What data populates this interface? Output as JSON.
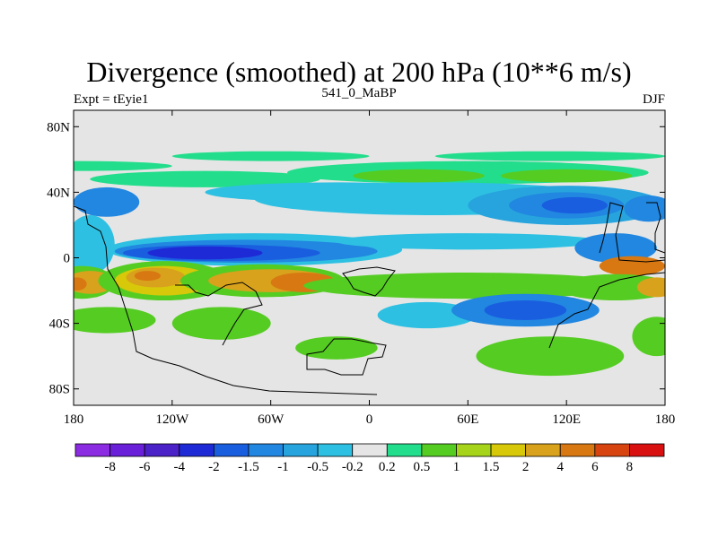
{
  "title": "Divergence (smoothed) at 200 hPa (10**6 m/s)",
  "left_subtitle": "Expt = tEyie1",
  "center_subtitle": "541_0_MaBP",
  "right_subtitle": "DJF",
  "chart_data": {
    "type": "heatmap",
    "title": "Divergence (smoothed) at 200 hPa (10**6 m/s)",
    "xlim": [
      -180,
      180
    ],
    "ylim": [
      -90,
      90
    ],
    "x_ticks": [
      {
        "value": -180,
        "label": "180"
      },
      {
        "value": -120,
        "label": "120W"
      },
      {
        "value": -60,
        "label": "60W"
      },
      {
        "value": 0,
        "label": "0"
      },
      {
        "value": 60,
        "label": "60E"
      },
      {
        "value": 120,
        "label": "120E"
      },
      {
        "value": 180,
        "label": "180"
      }
    ],
    "y_ticks": [
      {
        "value": 80,
        "label": "80N"
      },
      {
        "value": 40,
        "label": "40N"
      },
      {
        "value": 0,
        "label": "0"
      },
      {
        "value": -40,
        "label": "40S"
      },
      {
        "value": -80,
        "label": "80S"
      }
    ],
    "colorbar": {
      "colors": [
        "#8b2be2",
        "#6a1fd8",
        "#4b22c7",
        "#1e2ad6",
        "#1a5ee0",
        "#2187e0",
        "#27a4dd",
        "#2ec0e2",
        "#e5e5e5",
        "#22dd8b",
        "#55cc22",
        "#a6d41a",
        "#d7c80a",
        "#d8a21c",
        "#d87812",
        "#d84410",
        "#d81010"
      ],
      "labels": [
        "-8",
        "-6",
        "-4",
        "-2",
        "-1.5",
        "-1",
        "-0.5",
        "-0.2",
        "0.2",
        "0.5",
        "1",
        "1.5",
        "2",
        "4",
        "6",
        "8"
      ]
    },
    "background_level": "#e5e5e5",
    "features": [
      {
        "lon": -175,
        "lat": 56,
        "dlon": 55,
        "dlat": 3,
        "color": "#22dd8b"
      },
      {
        "lon": -60,
        "lat": 62,
        "dlon": 60,
        "dlat": 3,
        "color": "#22dd8b"
      },
      {
        "lon": 110,
        "lat": 62,
        "dlon": 70,
        "dlat": 3,
        "color": "#22dd8b"
      },
      {
        "lon": -100,
        "lat": 48,
        "dlon": 70,
        "dlat": 5,
        "color": "#22dd8b"
      },
      {
        "lon": 60,
        "lat": 52,
        "dlon": 110,
        "dlat": 7,
        "color": "#22dd8b"
      },
      {
        "lon": 30,
        "lat": 50,
        "dlon": 40,
        "dlat": 4,
        "color": "#55cc22"
      },
      {
        "lon": 120,
        "lat": 50,
        "dlon": 40,
        "dlat": 4,
        "color": "#55cc22"
      },
      {
        "lon": -160,
        "lat": 34,
        "dlon": 20,
        "dlat": 9,
        "color": "#2187e0"
      },
      {
        "lon": -20,
        "lat": 40,
        "dlon": 80,
        "dlat": 6,
        "color": "#2ec0e2"
      },
      {
        "lon": 40,
        "lat": 36,
        "dlon": 110,
        "dlat": 10,
        "color": "#2ec0e2"
      },
      {
        "lon": 120,
        "lat": 32,
        "dlon": 60,
        "dlat": 12,
        "color": "#27a4dd"
      },
      {
        "lon": 120,
        "lat": 32,
        "dlon": 35,
        "dlat": 8,
        "color": "#2187e0"
      },
      {
        "lon": 125,
        "lat": 32,
        "dlon": 20,
        "dlat": 5,
        "color": "#1a5ee0"
      },
      {
        "lon": 170,
        "lat": 30,
        "dlon": 15,
        "dlat": 8,
        "color": "#2187e0"
      },
      {
        "lon": -170,
        "lat": 8,
        "dlon": 15,
        "dlat": 18,
        "color": "#2ec0e2"
      },
      {
        "lon": -70,
        "lat": 5,
        "dlon": 90,
        "dlat": 10,
        "color": "#2ec0e2"
      },
      {
        "lon": -75,
        "lat": 4,
        "dlon": 80,
        "dlat": 7,
        "color": "#2187e0"
      },
      {
        "lon": -90,
        "lat": 3,
        "dlon": 60,
        "dlat": 5,
        "color": "#1a5ee0"
      },
      {
        "lon": -100,
        "lat": 3,
        "dlon": 35,
        "dlat": 4,
        "color": "#1e2ad6"
      },
      {
        "lon": 60,
        "lat": 10,
        "dlon": 80,
        "dlat": 5,
        "color": "#2ec0e2"
      },
      {
        "lon": 150,
        "lat": 6,
        "dlon": 25,
        "dlat": 9,
        "color": "#2187e0"
      },
      {
        "lon": 160,
        "lat": -5,
        "dlon": 20,
        "dlat": 6,
        "color": "#d87812"
      },
      {
        "lon": -175,
        "lat": -15,
        "dlon": 20,
        "dlat": 10,
        "color": "#55cc22"
      },
      {
        "lon": -170,
        "lat": -15,
        "dlon": 15,
        "dlat": 7,
        "color": "#d8a21c"
      },
      {
        "lon": -178,
        "lat": -16,
        "dlon": 6,
        "dlat": 4,
        "color": "#d87812"
      },
      {
        "lon": -125,
        "lat": -14,
        "dlon": 40,
        "dlat": 12,
        "color": "#55cc22"
      },
      {
        "lon": -125,
        "lat": -14,
        "dlon": 30,
        "dlat": 9,
        "color": "#d7c80a"
      },
      {
        "lon": -130,
        "lat": -12,
        "dlon": 18,
        "dlat": 6,
        "color": "#d8a21c"
      },
      {
        "lon": -135,
        "lat": -11,
        "dlon": 8,
        "dlat": 3,
        "color": "#d87812"
      },
      {
        "lon": -65,
        "lat": -14,
        "dlon": 50,
        "dlat": 10,
        "color": "#55cc22"
      },
      {
        "lon": -60,
        "lat": -14,
        "dlon": 38,
        "dlat": 7,
        "color": "#d8a21c"
      },
      {
        "lon": -40,
        "lat": -15,
        "dlon": 20,
        "dlat": 6,
        "color": "#d87812"
      },
      {
        "lon": 60,
        "lat": -17,
        "dlon": 100,
        "dlat": 8,
        "color": "#55cc22"
      },
      {
        "lon": 150,
        "lat": -18,
        "dlon": 35,
        "dlat": 8,
        "color": "#55cc22"
      },
      {
        "lon": 175,
        "lat": -18,
        "dlon": 12,
        "dlat": 6,
        "color": "#d8a21c"
      },
      {
        "lon": -160,
        "lat": -38,
        "dlon": 30,
        "dlat": 8,
        "color": "#55cc22"
      },
      {
        "lon": -90,
        "lat": -40,
        "dlon": 30,
        "dlat": 10,
        "color": "#55cc22"
      },
      {
        "lon": 35,
        "lat": -35,
        "dlon": 30,
        "dlat": 8,
        "color": "#2ec0e2"
      },
      {
        "lon": 95,
        "lat": -32,
        "dlon": 45,
        "dlat": 10,
        "color": "#2187e0"
      },
      {
        "lon": 95,
        "lat": -32,
        "dlon": 25,
        "dlat": 6,
        "color": "#1a5ee0"
      },
      {
        "lon": -20,
        "lat": -55,
        "dlon": 25,
        "dlat": 7,
        "color": "#55cc22"
      },
      {
        "lon": 110,
        "lat": -60,
        "dlon": 45,
        "dlat": 12,
        "color": "#55cc22"
      },
      {
        "lon": 175,
        "lat": -48,
        "dlon": 15,
        "dlat": 12,
        "color": "#55cc22"
      }
    ]
  }
}
